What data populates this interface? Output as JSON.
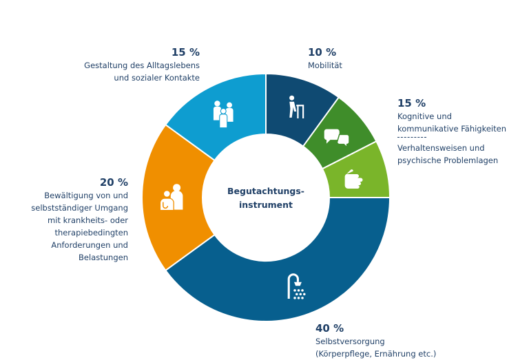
{
  "chart_data": {
    "type": "pie",
    "center_label": "Begutachtungs-\ninstrument",
    "slices": [
      {
        "percent_label": "10 %",
        "label": "Mobilität",
        "value": 10,
        "color": "#0f4a72",
        "icon": "walker-person-icon"
      },
      {
        "percent_label": "15 %",
        "label": "Kognitive und\nkommunikative Fähigkeiten",
        "value": 7.5,
        "color": "#3f8d2a",
        "icon": "speech-bubbles-icon"
      },
      {
        "percent_label": "",
        "label": "Verhaltensweisen und\npsychische Problemlagen",
        "value": 7.5,
        "color": "#7ab52a",
        "icon": "hand-icon"
      },
      {
        "percent_label": "40 %",
        "label": "Selbstversorgung\n(Körperpflege, Ernährung etc.)",
        "value": 40,
        "color": "#075f8e",
        "icon": "shower-icon"
      },
      {
        "percent_label": "20 %",
        "label": "Bewältigung von und\nselbstständiger Umgang\nmit krankheits- oder\ntherapiebedingten\nAnforderungen und\nBelastungen",
        "value": 20,
        "color": "#f08f00",
        "icon": "doctor-patient-icon"
      },
      {
        "percent_label": "15 %",
        "label": "Gestaltung des Alltagslebens\nund sozialer Kontakte",
        "value": 15,
        "color": "#0e9dd0",
        "icon": "people-group-icon"
      }
    ]
  }
}
